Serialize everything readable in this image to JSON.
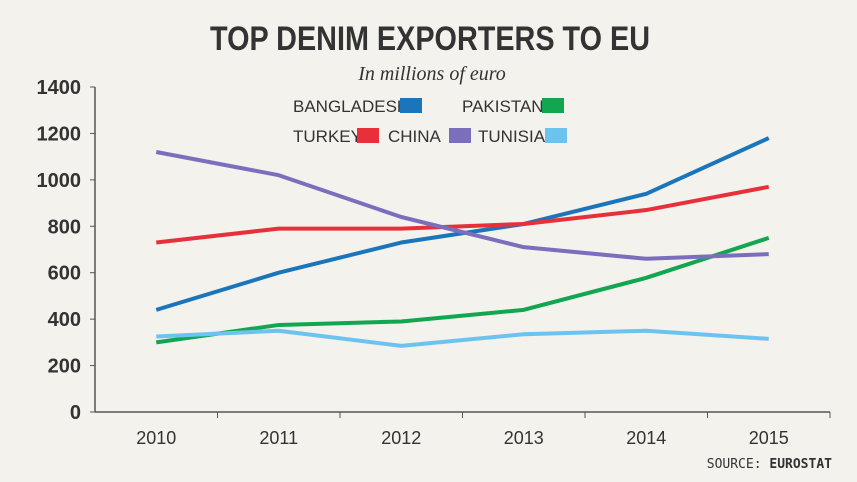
{
  "chart_data": {
    "type": "line",
    "title": "TOP DENIM EXPORTERS TO EU",
    "subtitle": "In millions of euro",
    "xlabel": "",
    "ylabel": "",
    "categories": [
      "2010",
      "2011",
      "2012",
      "2013",
      "2014",
      "2015"
    ],
    "ylim": [
      0,
      1400
    ],
    "yticks": [
      0,
      200,
      400,
      600,
      800,
      1000,
      1200,
      1400
    ],
    "grid": false,
    "legend_placement": "top-center",
    "series": [
      {
        "name": "BANGLADESH",
        "color": "#1b75bb",
        "values": [
          440,
          600,
          730,
          810,
          940,
          1180
        ]
      },
      {
        "name": "PAKISTAN",
        "color": "#12a650",
        "values": [
          300,
          375,
          390,
          440,
          578,
          750
        ]
      },
      {
        "name": "TURKEY",
        "color": "#e8303a",
        "values": [
          730,
          790,
          790,
          810,
          870,
          970
        ]
      },
      {
        "name": "CHINA",
        "color": "#7b6fbd",
        "values": [
          1120,
          1020,
          840,
          710,
          660,
          680
        ]
      },
      {
        "name": "TUNISIA",
        "color": "#6cc3ef",
        "values": [
          325,
          350,
          285,
          335,
          350,
          315
        ]
      }
    ],
    "source_label": "SOURCE:",
    "source_name": "EUROSTAT"
  }
}
